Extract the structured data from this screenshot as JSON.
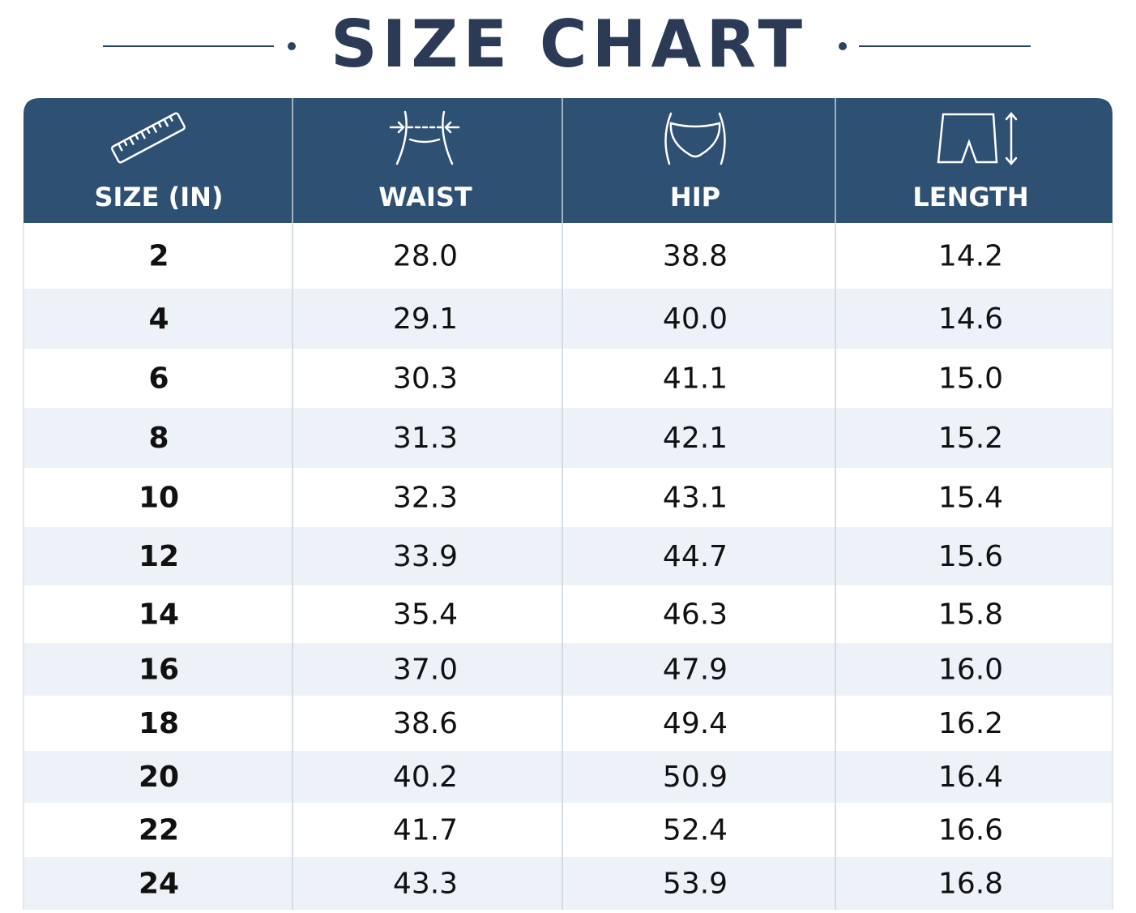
{
  "title": "SIZE CHART",
  "table": {
    "headers": [
      "SIZE (IN)",
      "WAIST",
      "HIP",
      "LENGTH"
    ],
    "rows": [
      [
        "2",
        "28.0",
        "38.8",
        "14.2"
      ],
      [
        "4",
        "29.1",
        "40.0",
        "14.6"
      ],
      [
        "6",
        "30.3",
        "41.1",
        "15.0"
      ],
      [
        "8",
        "31.3",
        "42.1",
        "15.2"
      ],
      [
        "10",
        "32.3",
        "43.1",
        "15.4"
      ],
      [
        "12",
        "33.9",
        "44.7",
        "15.6"
      ],
      [
        "14",
        "35.4",
        "46.3",
        "15.8"
      ],
      [
        "16",
        "37.0",
        "47.9",
        "16.0"
      ],
      [
        "18",
        "38.6",
        "49.4",
        "16.2"
      ],
      [
        "20",
        "40.2",
        "50.9",
        "16.4"
      ],
      [
        "22",
        "41.7",
        "52.4",
        "16.6"
      ],
      [
        "24",
        "43.3",
        "53.9",
        "16.8"
      ]
    ]
  }
}
